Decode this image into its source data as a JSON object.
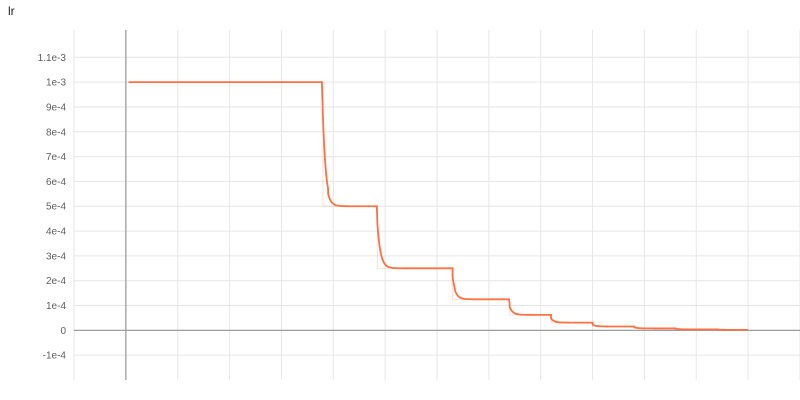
{
  "chart_data": {
    "type": "line",
    "title": "lr",
    "xlabel": "",
    "ylabel": "",
    "x_range": [
      -1,
      13
    ],
    "ylim": [
      -0.0002,
      0.00121
    ],
    "y_ticks": [
      {
        "value": 0.0011,
        "label": "1.1e-3"
      },
      {
        "value": 0.001,
        "label": "1e-3"
      },
      {
        "value": 0.0009,
        "label": "9e-4"
      },
      {
        "value": 0.0008,
        "label": "8e-4"
      },
      {
        "value": 0.0007,
        "label": "7e-4"
      },
      {
        "value": 0.0006,
        "label": "6e-4"
      },
      {
        "value": 0.0005,
        "label": "5e-4"
      },
      {
        "value": 0.0004,
        "label": "4e-4"
      },
      {
        "value": 0.0003,
        "label": "3e-4"
      },
      {
        "value": 0.0002,
        "label": "2e-4"
      },
      {
        "value": 0.0001,
        "label": "1e-4"
      },
      {
        "value": 0,
        "label": "0"
      },
      {
        "value": -0.0001,
        "label": "-1e-4"
      }
    ],
    "x_gridlines": [
      -1,
      0,
      1,
      2,
      3,
      4,
      5,
      6,
      7,
      8,
      9,
      10,
      11,
      12,
      13
    ],
    "grid": true,
    "series": [
      {
        "color": "#ff7043",
        "points": [
          [
            0.05,
            0.001
          ],
          [
            2.8,
            0.001
          ],
          [
            3.8,
            0.0005
          ],
          [
            3.9,
            0.0005
          ],
          [
            4.85,
            0.00025
          ],
          [
            5.3,
            0.00025
          ],
          [
            6.3,
            0.000125
          ],
          [
            6.35,
            0.000125
          ],
          [
            7.4,
            6.25e-05
          ],
          [
            7.4,
            6.25e-05
          ],
          [
            8.2,
            3.125e-05
          ],
          [
            8.2,
            3.125e-05
          ],
          [
            9.0,
            1.56e-05
          ],
          [
            9.0,
            1.56e-05
          ],
          [
            9.8,
            7.8e-06
          ],
          [
            10.6,
            3.9e-06
          ],
          [
            11.4,
            2e-06
          ],
          [
            12.0,
            1e-06
          ]
        ]
      }
    ]
  }
}
